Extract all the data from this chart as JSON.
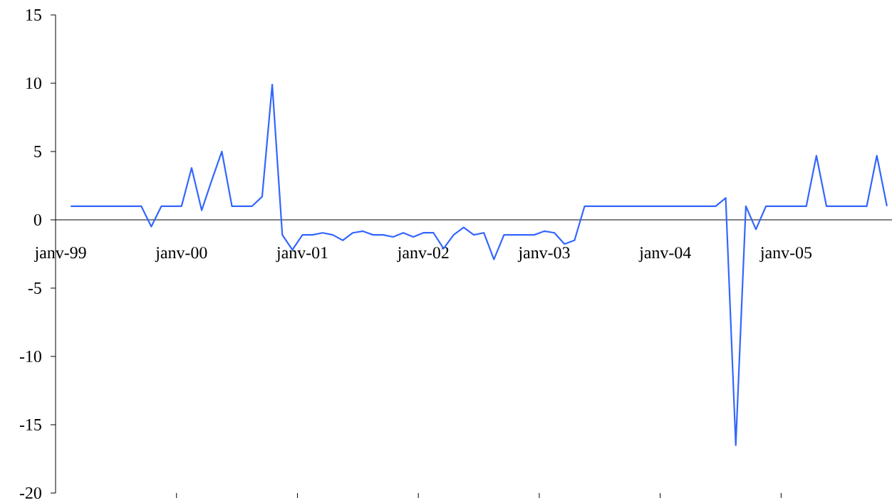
{
  "chart_data": {
    "type": "line",
    "categories": [
      "janv-99",
      null,
      null,
      null,
      null,
      null,
      null,
      null,
      null,
      null,
      null,
      null,
      "janv-00",
      null,
      null,
      null,
      null,
      null,
      null,
      null,
      null,
      null,
      null,
      null,
      "janv-01",
      null,
      null,
      null,
      null,
      null,
      null,
      null,
      null,
      null,
      null,
      null,
      "janv-02",
      null,
      null,
      null,
      null,
      null,
      null,
      null,
      null,
      null,
      null,
      null,
      "janv-03",
      null,
      null,
      null,
      null,
      null,
      null,
      null,
      null,
      null,
      null,
      null,
      "janv-04",
      null,
      null,
      null,
      null,
      null,
      null,
      null,
      null,
      null,
      null,
      null,
      "janv-05",
      null,
      null,
      null,
      null,
      null,
      null,
      null,
      null,
      null,
      null
    ],
    "values": [
      null,
      1,
      1,
      1,
      1,
      1,
      1,
      1,
      1,
      -0.5,
      1,
      1,
      1,
      3.8,
      0.7,
      2.9,
      5,
      1,
      1,
      1,
      1.7,
      9.9,
      -1.1,
      -2.2,
      -1.1,
      -1.1,
      -0.95,
      -1.1,
      -1.5,
      -0.95,
      -0.83,
      -1.1,
      -1.1,
      -1.25,
      -0.95,
      -1.25,
      -0.95,
      -0.95,
      -2.1,
      -1.1,
      -0.55,
      -1.1,
      -0.95,
      -2.9,
      -1.1,
      -1.1,
      -1.1,
      -1.1,
      -0.83,
      -0.95,
      -1.77,
      -1.5,
      1,
      1,
      1,
      1,
      1,
      1,
      1,
      1,
      1,
      1,
      1,
      1,
      1,
      1,
      1.6,
      -16.5,
      1,
      -0.7,
      1,
      1,
      1,
      1,
      1,
      4.7,
      1,
      1,
      1,
      1,
      1,
      4.7,
      1
    ],
    "color": "#3366ff",
    "ylim": [
      -20,
      15
    ],
    "yticks": [
      -20,
      -15,
      -10,
      -5,
      0,
      5,
      10,
      15
    ],
    "grid": false,
    "marker": "none",
    "line_style": "solid"
  }
}
